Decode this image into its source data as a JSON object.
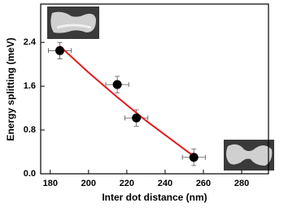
{
  "chart_data": {
    "type": "scatter",
    "x_label": "Inter dot distance (nm)",
    "y_label": "Energy splitting (meV)",
    "xlim": [
      175,
      294
    ],
    "ylim": [
      0,
      3.1
    ],
    "xticks": [
      180,
      200,
      220,
      240,
      260,
      280
    ],
    "yticks": [
      {
        "value": 0,
        "label": "0.0"
      },
      0.8,
      1.6,
      2.4
    ],
    "series": [
      {
        "color": "#000000",
        "x": [
          185,
          215,
          225,
          255
        ],
        "values": [
          2.25,
          1.63,
          1.02,
          0.3
        ],
        "x_errors": [
          6,
          6,
          6,
          6
        ],
        "errors": [
          0.15,
          0.15,
          0.15,
          0.15
        ]
      }
    ],
    "fit": {
      "color": "#e41a1c",
      "x": [
        185,
        200,
        215,
        230,
        245,
        255
      ],
      "values": [
        2.33,
        1.85,
        1.4,
        0.97,
        0.58,
        0.32
      ]
    }
  }
}
